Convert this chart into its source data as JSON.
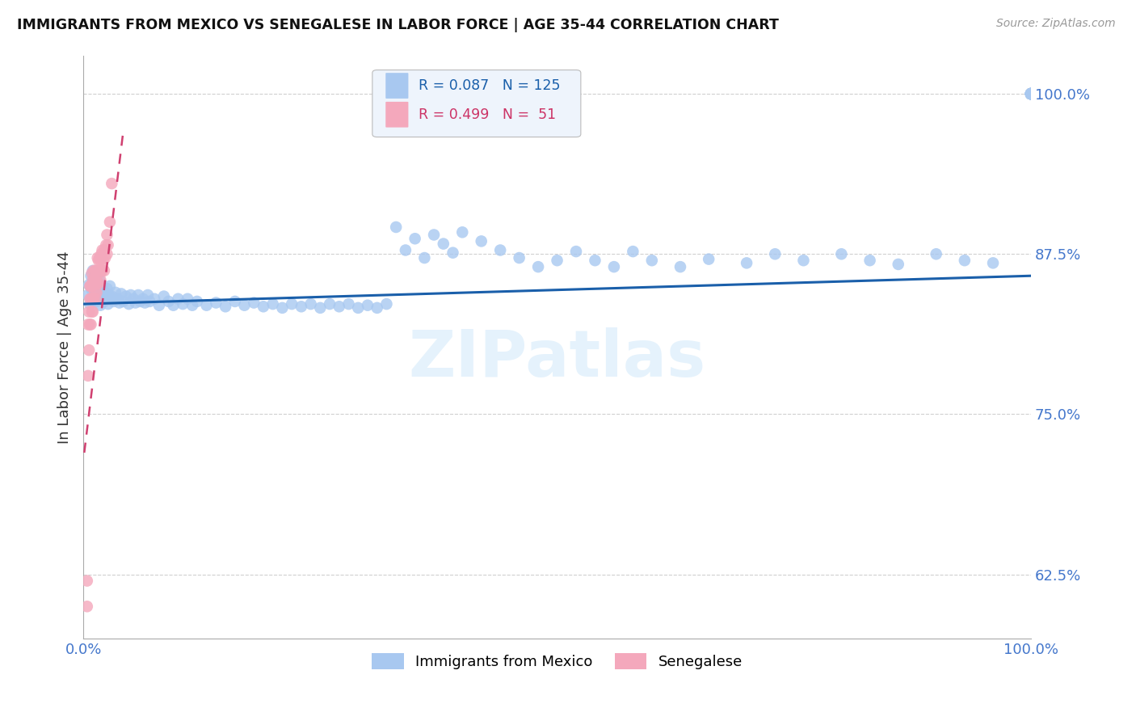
{
  "title": "IMMIGRANTS FROM MEXICO VS SENEGALESE IN LABOR FORCE | AGE 35-44 CORRELATION CHART",
  "source": "Source: ZipAtlas.com",
  "ylabel": "In Labor Force | Age 35-44",
  "xlim": [
    0.0,
    1.0
  ],
  "ylim": [
    0.575,
    1.03
  ],
  "yticks": [
    0.625,
    0.75,
    0.875,
    1.0
  ],
  "ytick_labels": [
    "62.5%",
    "75.0%",
    "87.5%",
    "100.0%"
  ],
  "xticks": [
    0.0,
    0.25,
    0.5,
    0.75,
    1.0
  ],
  "xtick_labels": [
    "0.0%",
    "",
    "",
    "",
    "100.0%"
  ],
  "blue_color": "#a8c8f0",
  "pink_color": "#f4a8bc",
  "trendline_blue": "#1a5faa",
  "trendline_pink": "#d04070",
  "R_blue": 0.087,
  "N_blue": 125,
  "R_pink": 0.499,
  "N_pink": 51,
  "watermark": "ZIPatlas",
  "blue_scatter_x": [
    0.005,
    0.006,
    0.007,
    0.008,
    0.009,
    0.01,
    0.01,
    0.011,
    0.011,
    0.012,
    0.012,
    0.013,
    0.013,
    0.014,
    0.014,
    0.015,
    0.015,
    0.016,
    0.016,
    0.017,
    0.018,
    0.018,
    0.019,
    0.02,
    0.021,
    0.022,
    0.023,
    0.024,
    0.025,
    0.026,
    0.027,
    0.028,
    0.03,
    0.032,
    0.034,
    0.036,
    0.038,
    0.04,
    0.042,
    0.045,
    0.048,
    0.05,
    0.053,
    0.055,
    0.058,
    0.06,
    0.063,
    0.065,
    0.068,
    0.07,
    0.075,
    0.08,
    0.085,
    0.09,
    0.095,
    0.1,
    0.105,
    0.11,
    0.115,
    0.12,
    0.13,
    0.14,
    0.15,
    0.16,
    0.17,
    0.18,
    0.19,
    0.2,
    0.21,
    0.22,
    0.23,
    0.24,
    0.25,
    0.26,
    0.27,
    0.28,
    0.29,
    0.3,
    0.31,
    0.32,
    0.33,
    0.34,
    0.35,
    0.36,
    0.37,
    0.38,
    0.39,
    0.4,
    0.42,
    0.44,
    0.46,
    0.48,
    0.5,
    0.52,
    0.54,
    0.56,
    0.58,
    0.6,
    0.63,
    0.66,
    0.7,
    0.73,
    0.76,
    0.8,
    0.83,
    0.86,
    0.9,
    0.93,
    0.96,
    1.0,
    1.0,
    1.0,
    1.0,
    1.0,
    1.0,
    1.0,
    1.0,
    1.0,
    1.0,
    1.0,
    1.0,
    1.0,
    1.0,
    1.0,
    1.0
  ],
  "blue_scatter_y": [
    0.843,
    0.851,
    0.836,
    0.858,
    0.847,
    0.862,
    0.839,
    0.854,
    0.841,
    0.86,
    0.848,
    0.855,
    0.843,
    0.85,
    0.838,
    0.853,
    0.845,
    0.848,
    0.84,
    0.855,
    0.843,
    0.835,
    0.85,
    0.847,
    0.843,
    0.838,
    0.845,
    0.84,
    0.848,
    0.836,
    0.843,
    0.85,
    0.842,
    0.838,
    0.845,
    0.84,
    0.837,
    0.844,
    0.838,
    0.842,
    0.836,
    0.843,
    0.84,
    0.837,
    0.843,
    0.838,
    0.84,
    0.837,
    0.843,
    0.838,
    0.84,
    0.835,
    0.842,
    0.838,
    0.835,
    0.84,
    0.836,
    0.84,
    0.835,
    0.838,
    0.835,
    0.837,
    0.834,
    0.838,
    0.835,
    0.837,
    0.834,
    0.836,
    0.833,
    0.836,
    0.834,
    0.836,
    0.833,
    0.836,
    0.834,
    0.836,
    0.833,
    0.835,
    0.833,
    0.836,
    0.896,
    0.878,
    0.887,
    0.872,
    0.89,
    0.883,
    0.876,
    0.892,
    0.885,
    0.878,
    0.872,
    0.865,
    0.87,
    0.877,
    0.87,
    0.865,
    0.877,
    0.87,
    0.865,
    0.871,
    0.868,
    0.875,
    0.87,
    0.875,
    0.87,
    0.867,
    0.875,
    0.87,
    0.868,
    1.0,
    1.0,
    1.0,
    1.0,
    1.0,
    1.0,
    1.0,
    1.0,
    1.0,
    1.0,
    1.0,
    1.0,
    1.0,
    1.0,
    1.0,
    1.0
  ],
  "pink_scatter_x": [
    0.004,
    0.004,
    0.005,
    0.005,
    0.006,
    0.006,
    0.007,
    0.007,
    0.007,
    0.008,
    0.008,
    0.008,
    0.009,
    0.009,
    0.009,
    0.01,
    0.01,
    0.01,
    0.011,
    0.011,
    0.011,
    0.012,
    0.012,
    0.013,
    0.013,
    0.013,
    0.014,
    0.014,
    0.015,
    0.015,
    0.015,
    0.016,
    0.016,
    0.017,
    0.017,
    0.018,
    0.018,
    0.019,
    0.019,
    0.02,
    0.02,
    0.021,
    0.022,
    0.022,
    0.023,
    0.024,
    0.025,
    0.025,
    0.026,
    0.028,
    0.03
  ],
  "pink_scatter_y": [
    0.6,
    0.62,
    0.78,
    0.82,
    0.8,
    0.83,
    0.82,
    0.84,
    0.85,
    0.82,
    0.84,
    0.85,
    0.83,
    0.85,
    0.86,
    0.83,
    0.84,
    0.855,
    0.84,
    0.852,
    0.862,
    0.845,
    0.855,
    0.84,
    0.852,
    0.862,
    0.845,
    0.858,
    0.852,
    0.862,
    0.872,
    0.852,
    0.87,
    0.862,
    0.872,
    0.855,
    0.87,
    0.862,
    0.875,
    0.862,
    0.878,
    0.87,
    0.862,
    0.878,
    0.872,
    0.882,
    0.875,
    0.89,
    0.882,
    0.9,
    0.93
  ],
  "blue_trendline_x0": 0.0,
  "blue_trendline_x1": 1.0,
  "blue_trendline_y0": 0.836,
  "blue_trendline_y1": 0.858,
  "pink_trendline_x0": 0.001,
  "pink_trendline_x1": 0.042,
  "pink_trendline_y0": 0.72,
  "pink_trendline_y1": 0.97
}
